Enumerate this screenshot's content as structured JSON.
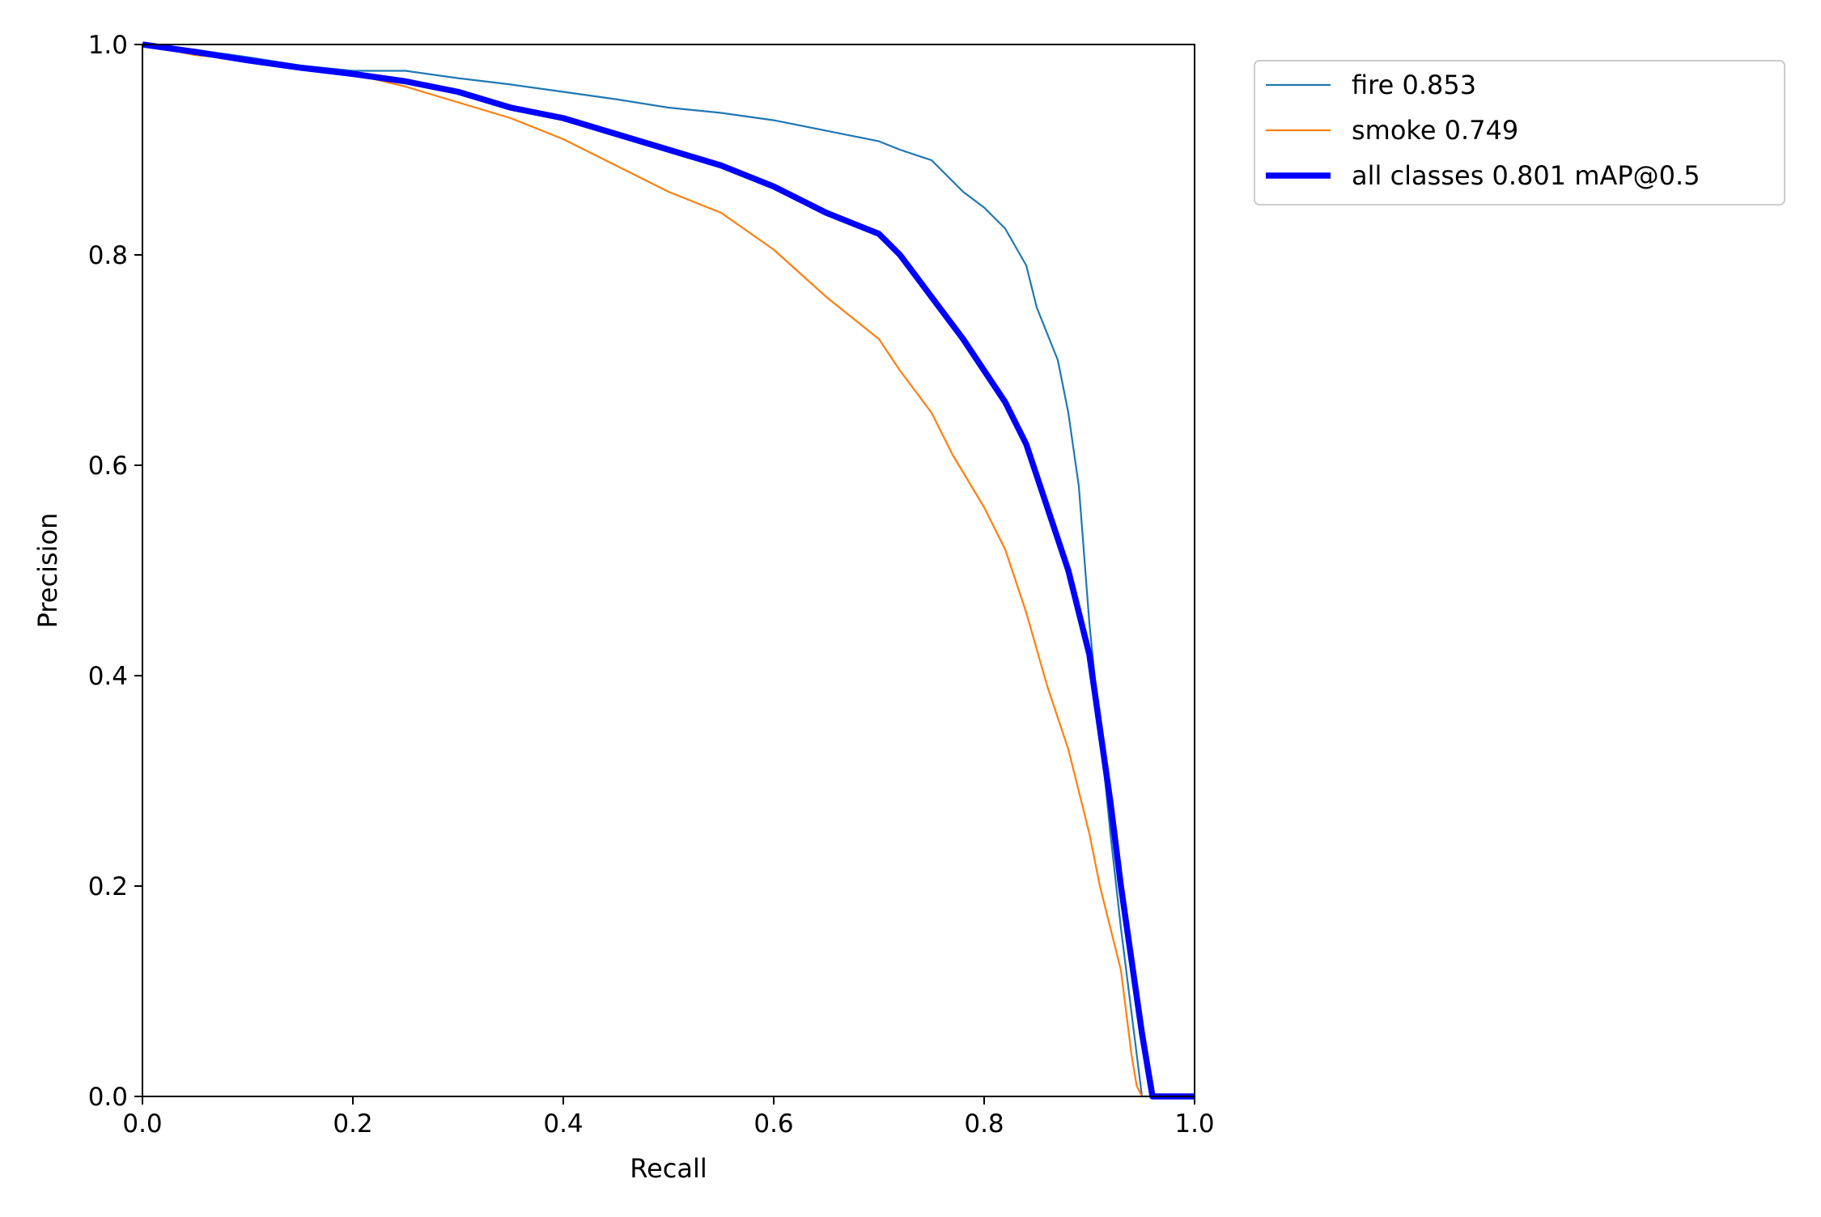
{
  "chart_data": {
    "type": "line",
    "title": "",
    "xlabel": "Recall",
    "ylabel": "Precision",
    "xlim": [
      0,
      1
    ],
    "ylim": [
      0,
      1
    ],
    "xticks": [
      "0.0",
      "0.2",
      "0.4",
      "0.6",
      "0.8",
      "1.0"
    ],
    "yticks": [
      "0.0",
      "0.2",
      "0.4",
      "0.6",
      "0.8",
      "1.0"
    ],
    "grid": false,
    "legend_position": "outside upper-right",
    "series": [
      {
        "name": "fire 0.853",
        "color": "#1f77b4",
        "style": "thin",
        "x": [
          0.0,
          0.05,
          0.1,
          0.15,
          0.2,
          0.25,
          0.3,
          0.35,
          0.4,
          0.45,
          0.5,
          0.55,
          0.6,
          0.65,
          0.7,
          0.72,
          0.75,
          0.78,
          0.8,
          0.82,
          0.84,
          0.85,
          0.86,
          0.87,
          0.88,
          0.89,
          0.9,
          0.91,
          0.92,
          0.93,
          0.94,
          0.95,
          0.96,
          0.97,
          0.98,
          1.0
        ],
        "y": [
          1.0,
          0.995,
          0.988,
          0.98,
          0.975,
          0.975,
          0.968,
          0.962,
          0.955,
          0.948,
          0.94,
          0.935,
          0.928,
          0.918,
          0.908,
          0.9,
          0.89,
          0.86,
          0.845,
          0.825,
          0.79,
          0.75,
          0.725,
          0.7,
          0.65,
          0.58,
          0.45,
          0.35,
          0.25,
          0.16,
          0.08,
          0.0,
          0.0,
          0.0,
          0.0,
          0.0
        ]
      },
      {
        "name": "smoke 0.749",
        "color": "#ff7f0e",
        "style": "thin",
        "x": [
          0.0,
          0.05,
          0.1,
          0.15,
          0.2,
          0.25,
          0.3,
          0.35,
          0.4,
          0.45,
          0.5,
          0.55,
          0.6,
          0.65,
          0.7,
          0.72,
          0.75,
          0.77,
          0.8,
          0.82,
          0.84,
          0.86,
          0.88,
          0.9,
          0.91,
          0.92,
          0.93,
          0.935,
          0.94,
          0.945,
          0.95
        ],
        "y": [
          1.0,
          0.99,
          0.985,
          0.978,
          0.972,
          0.96,
          0.945,
          0.93,
          0.91,
          0.885,
          0.86,
          0.84,
          0.805,
          0.76,
          0.72,
          0.69,
          0.65,
          0.61,
          0.56,
          0.52,
          0.46,
          0.39,
          0.33,
          0.25,
          0.2,
          0.16,
          0.12,
          0.08,
          0.04,
          0.01,
          0.0
        ]
      },
      {
        "name": "all classes 0.801 mAP@0.5",
        "color": "#0000ff",
        "style": "thick",
        "x": [
          0.0,
          0.05,
          0.1,
          0.15,
          0.2,
          0.25,
          0.3,
          0.35,
          0.4,
          0.45,
          0.5,
          0.55,
          0.6,
          0.65,
          0.7,
          0.72,
          0.75,
          0.78,
          0.8,
          0.82,
          0.84,
          0.86,
          0.88,
          0.9,
          0.91,
          0.92,
          0.93,
          0.94,
          0.95,
          0.96,
          0.965,
          1.0
        ],
        "y": [
          1.0,
          0.993,
          0.985,
          0.978,
          0.972,
          0.965,
          0.955,
          0.94,
          0.93,
          0.915,
          0.9,
          0.885,
          0.865,
          0.84,
          0.82,
          0.8,
          0.76,
          0.72,
          0.69,
          0.66,
          0.62,
          0.56,
          0.5,
          0.42,
          0.35,
          0.28,
          0.2,
          0.13,
          0.06,
          0.0,
          0.0,
          0.0
        ]
      }
    ]
  }
}
